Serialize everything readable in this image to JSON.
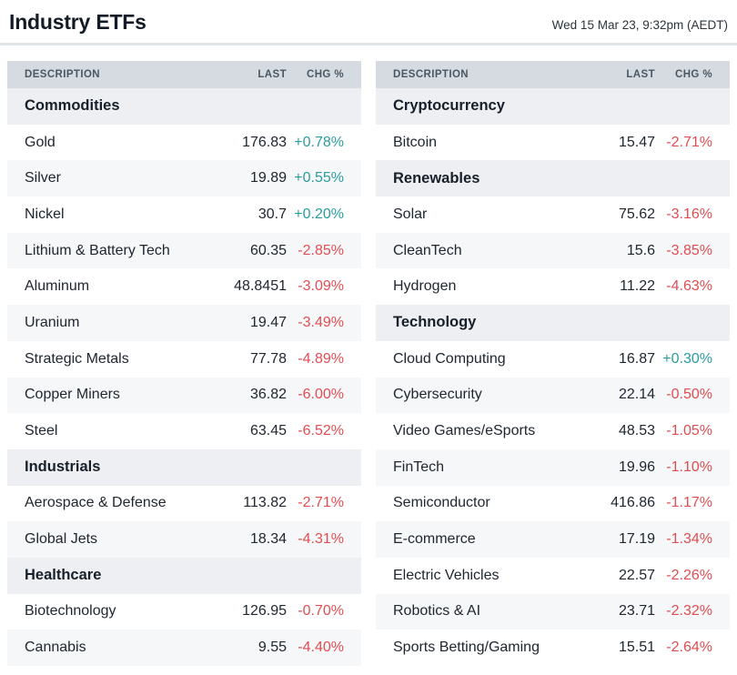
{
  "header": {
    "title": "Industry ETFs",
    "timestamp": "Wed 15 Mar 23, 9:32pm (AEDT)"
  },
  "columns": {
    "description": "DESCRIPTION",
    "last": "LAST",
    "chg": "CHG %"
  },
  "colors": {
    "positive": "#2a9c9e",
    "negative": "#e04d52",
    "header_bg": "#d6dbe1",
    "section_bg": "#edeff2",
    "row_alt_bg": "#f6f7f8",
    "divider": "#e1e4e8"
  },
  "tables": [
    {
      "id": "left",
      "rows": [
        {
          "type": "section",
          "label": "Commodities"
        },
        {
          "type": "data",
          "description": "Gold",
          "last": "176.83",
          "chg": "+0.78%",
          "direction": "up"
        },
        {
          "type": "data",
          "description": "Silver",
          "last": "19.89",
          "chg": "+0.55%",
          "direction": "up"
        },
        {
          "type": "data",
          "description": "Nickel",
          "last": "30.7",
          "chg": "+0.20%",
          "direction": "up"
        },
        {
          "type": "data",
          "description": "Lithium & Battery Tech",
          "last": "60.35",
          "chg": "-2.85%",
          "direction": "down"
        },
        {
          "type": "data",
          "description": "Aluminum",
          "last": "48.8451",
          "chg": "-3.09%",
          "direction": "down"
        },
        {
          "type": "data",
          "description": "Uranium",
          "last": "19.47",
          "chg": "-3.49%",
          "direction": "down"
        },
        {
          "type": "data",
          "description": "Strategic Metals",
          "last": "77.78",
          "chg": "-4.89%",
          "direction": "down"
        },
        {
          "type": "data",
          "description": "Copper Miners",
          "last": "36.82",
          "chg": "-6.00%",
          "direction": "down"
        },
        {
          "type": "data",
          "description": "Steel",
          "last": "63.45",
          "chg": "-6.52%",
          "direction": "down"
        },
        {
          "type": "section",
          "label": "Industrials"
        },
        {
          "type": "data",
          "description": "Aerospace & Defense",
          "last": "113.82",
          "chg": "-2.71%",
          "direction": "down"
        },
        {
          "type": "data",
          "description": "Global Jets",
          "last": "18.34",
          "chg": "-4.31%",
          "direction": "down"
        },
        {
          "type": "section",
          "label": "Healthcare"
        },
        {
          "type": "data",
          "description": "Biotechnology",
          "last": "126.95",
          "chg": "-0.70%",
          "direction": "down"
        },
        {
          "type": "data",
          "description": "Cannabis",
          "last": "9.55",
          "chg": "-4.40%",
          "direction": "down"
        }
      ]
    },
    {
      "id": "right",
      "rows": [
        {
          "type": "section",
          "label": "Cryptocurrency"
        },
        {
          "type": "data",
          "description": "Bitcoin",
          "last": "15.47",
          "chg": "-2.71%",
          "direction": "down"
        },
        {
          "type": "section",
          "label": "Renewables"
        },
        {
          "type": "data",
          "description": "Solar",
          "last": "75.62",
          "chg": "-3.16%",
          "direction": "down"
        },
        {
          "type": "data",
          "description": "CleanTech",
          "last": "15.6",
          "chg": "-3.85%",
          "direction": "down"
        },
        {
          "type": "data",
          "description": "Hydrogen",
          "last": "11.22",
          "chg": "-4.63%",
          "direction": "down"
        },
        {
          "type": "section",
          "label": "Technology"
        },
        {
          "type": "data",
          "description": "Cloud Computing",
          "last": "16.87",
          "chg": "+0.30%",
          "direction": "up"
        },
        {
          "type": "data",
          "description": "Cybersecurity",
          "last": "22.14",
          "chg": "-0.50%",
          "direction": "down"
        },
        {
          "type": "data",
          "description": "Video Games/eSports",
          "last": "48.53",
          "chg": "-1.05%",
          "direction": "down"
        },
        {
          "type": "data",
          "description": "FinTech",
          "last": "19.96",
          "chg": "-1.10%",
          "direction": "down"
        },
        {
          "type": "data",
          "description": "Semiconductor",
          "last": "416.86",
          "chg": "-1.17%",
          "direction": "down"
        },
        {
          "type": "data",
          "description": "E-commerce",
          "last": "17.19",
          "chg": "-1.34%",
          "direction": "down"
        },
        {
          "type": "data",
          "description": "Electric Vehicles",
          "last": "22.57",
          "chg": "-2.26%",
          "direction": "down"
        },
        {
          "type": "data",
          "description": "Robotics & AI",
          "last": "23.71",
          "chg": "-2.32%",
          "direction": "down"
        },
        {
          "type": "data",
          "description": "Sports Betting/Gaming",
          "last": "15.51",
          "chg": "-2.64%",
          "direction": "down"
        }
      ]
    }
  ]
}
